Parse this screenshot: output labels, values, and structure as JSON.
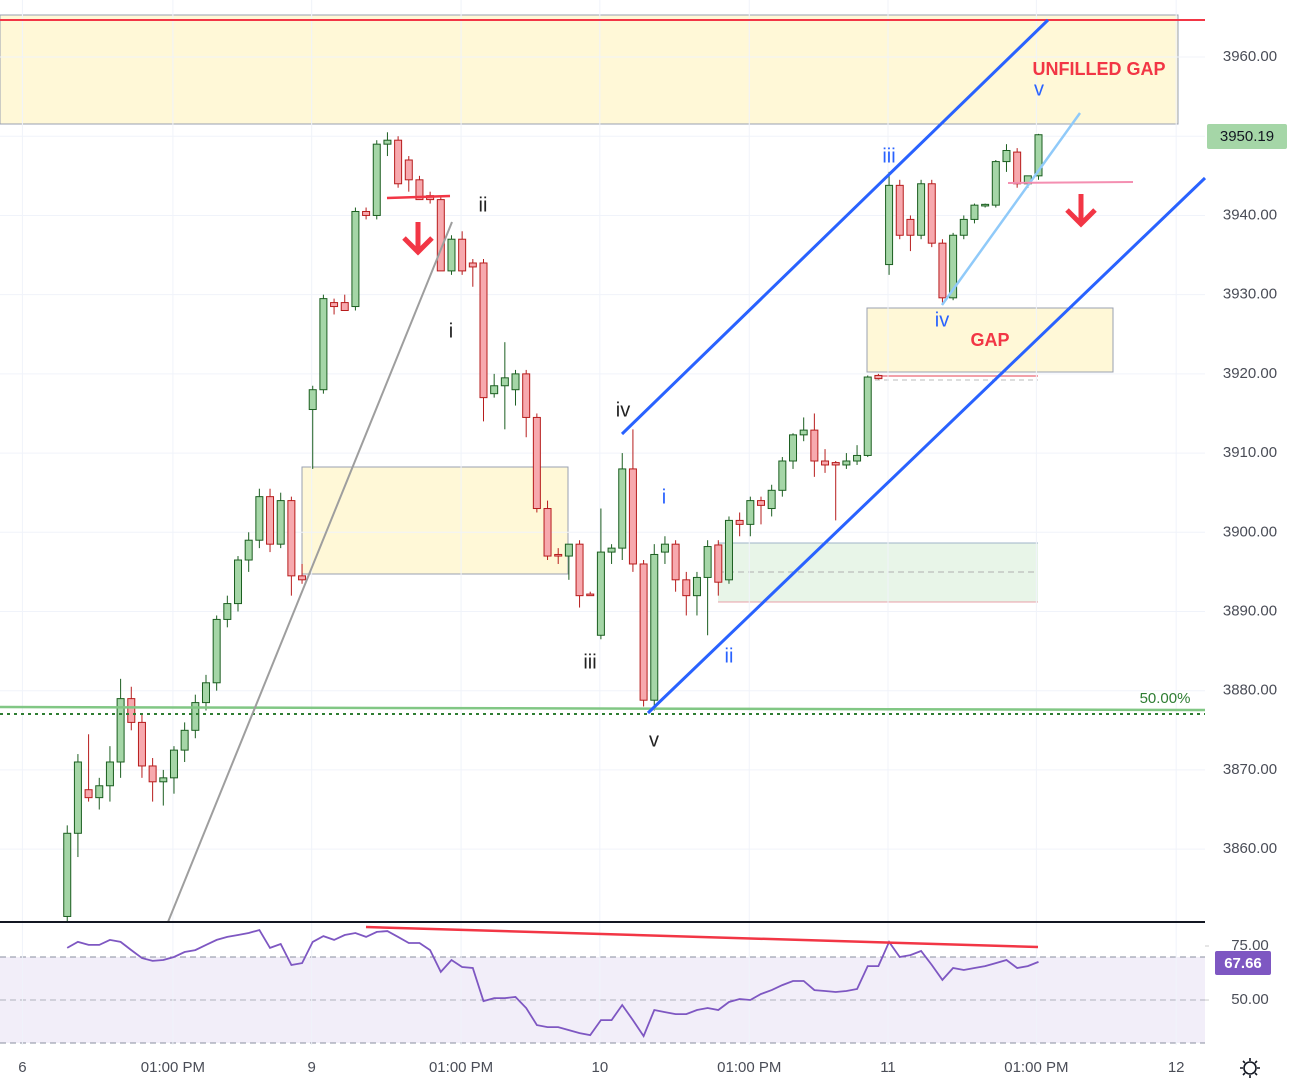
{
  "chart_data": [
    {
      "type": "candlestick",
      "x": [
        0,
        1,
        2,
        3,
        4,
        5,
        6,
        7,
        8,
        9,
        10,
        11,
        12,
        13,
        14,
        15,
        16,
        17,
        18,
        19,
        20,
        21,
        22,
        23,
        24,
        25,
        26,
        27,
        28,
        29,
        30,
        31,
        32,
        33,
        34,
        35,
        36,
        37,
        38,
        39,
        40,
        41,
        42,
        43,
        44,
        45,
        46,
        47,
        48,
        49,
        50,
        51,
        52,
        53,
        54,
        55,
        56,
        57,
        58,
        59,
        60,
        61,
        62,
        63,
        64,
        65,
        66,
        67,
        68,
        69,
        70,
        71,
        72,
        73,
        74,
        75,
        76,
        77,
        78,
        79,
        80,
        81,
        82,
        83,
        84,
        85,
        86,
        87,
        88,
        89,
        90,
        91
      ],
      "open": [
        3851.5,
        3862,
        3867.5,
        3866.5,
        3868,
        3871,
        3879,
        3876,
        3870.5,
        3868.5,
        3869,
        3872.5,
        3875,
        3878.5,
        3881,
        3889,
        3891,
        3896.5,
        3899,
        3904.5,
        3898.5,
        3904,
        3894.5,
        3915.5,
        3918,
        3929,
        3929,
        3928.5,
        3940.5,
        3940,
        3949,
        3949.5,
        3947,
        3944.5,
        3942.5,
        3942,
        3933,
        3937,
        3934,
        3934,
        3917.5,
        3918.5,
        3918,
        3920,
        3914.5,
        3903,
        3897.2,
        3897,
        3898.5,
        3892.2,
        3887,
        3897.5,
        3898,
        3908,
        3896,
        3878.8,
        3897.5,
        3898.5,
        3894,
        3892,
        3894.3,
        3898.4,
        3894,
        3901.5,
        3901,
        3904,
        3903,
        3905.3,
        3909,
        3912.3,
        3912.9,
        3909,
        3908.8,
        3908.5,
        3909,
        3909.7,
        3919.8,
        3933.8,
        3943.8,
        3939.5,
        3937.5,
        3944,
        3936.5,
        3929.6,
        3937.5,
        3939.5,
        3941.2,
        3941.3,
        3946.8,
        3948,
        3944,
        3945
      ],
      "high": [
        3863,
        3872,
        3874.5,
        3869,
        3873,
        3881.5,
        3880.5,
        3877,
        3871.5,
        3870,
        3873,
        3876,
        3879.5,
        3882,
        3889.5,
        3892,
        3897,
        3900,
        3905.5,
        3905.5,
        3905,
        3904.5,
        3896,
        3918.5,
        3930,
        3929.5,
        3930,
        3941,
        3941,
        3949.5,
        3950.5,
        3950,
        3947.5,
        3945,
        3943,
        3942.5,
        3937.5,
        3938,
        3934.5,
        3934.5,
        3920,
        3924,
        3920.5,
        3920.5,
        3915,
        3904,
        3898,
        3898.5,
        3899,
        3892.5,
        3903,
        3898.5,
        3910,
        3913,
        3896.5,
        3898.5,
        3899.5,
        3899,
        3895,
        3895,
        3899,
        3899,
        3902,
        3902.5,
        3904.5,
        3904.5,
        3906,
        3909.5,
        3912.5,
        3914.5,
        3915,
        3910.5,
        3909,
        3910,
        3911,
        3919.8,
        3920,
        3945.5,
        3944.5,
        3940,
        3944.5,
        3944.5,
        3937,
        3937.8,
        3940,
        3941.5,
        3941.5,
        3947,
        3949,
        3948.5,
        3945,
        3950.3
      ],
      "low": [
        3850.8,
        3859,
        3866,
        3865,
        3866,
        3869,
        3875,
        3869,
        3866,
        3865.5,
        3867,
        3871,
        3874,
        3877.5,
        3880,
        3888,
        3890,
        3895,
        3898,
        3897.5,
        3898,
        3892,
        3893.5,
        3908,
        3917.5,
        3927.5,
        3928,
        3928,
        3939.5,
        3939.5,
        3947.5,
        3943.5,
        3943,
        3942,
        3941.5,
        3933,
        3932.5,
        3932.5,
        3931,
        3914,
        3917,
        3913,
        3916,
        3912,
        3902.5,
        3896.5,
        3896,
        3894,
        3890.5,
        3892,
        3886.5,
        3896,
        3896.5,
        3895,
        3878,
        3877.5,
        3896,
        3892.5,
        3889.5,
        3889.5,
        3887,
        3892,
        3893.5,
        3899.5,
        3899.5,
        3901,
        3902,
        3904.5,
        3908,
        3911.5,
        3907,
        3907.5,
        3901.5,
        3908,
        3908.5,
        3909.5,
        3919.3,
        3932.5,
        3937,
        3935.5,
        3937,
        3936,
        3929,
        3929.3,
        3937,
        3939,
        3941,
        3941,
        3945.5,
        3943.5,
        3943.5,
        3944.5
      ],
      "close": [
        3862,
        3871,
        3866.5,
        3868,
        3871,
        3879,
        3876,
        3870.5,
        3868.5,
        3869,
        3872.5,
        3875,
        3878.5,
        3881,
        3889,
        3891,
        3896.5,
        3899,
        3904.5,
        3898.5,
        3904,
        3894.5,
        3894,
        3918,
        3929.5,
        3928.5,
        3928,
        3940.5,
        3940,
        3949,
        3949.5,
        3944,
        3944.5,
        3942,
        3942,
        3933,
        3937,
        3933,
        3933.5,
        3917,
        3918.5,
        3919.5,
        3920,
        3914.5,
        3903,
        3897,
        3897,
        3898.5,
        3892,
        3892,
        3897.5,
        3898,
        3908,
        3896,
        3878.8,
        3897.2,
        3898.5,
        3894,
        3892,
        3894.3,
        3898.2,
        3893.7,
        3901.5,
        3901,
        3904,
        3903.4,
        3905.3,
        3909,
        3912.3,
        3912.9,
        3909,
        3908.5,
        3908.5,
        3909,
        3909.7,
        3919.6,
        3919.4,
        3943.8,
        3937.5,
        3937.5,
        3944,
        3936.5,
        3929.6,
        3937.5,
        3939.5,
        3941.3,
        3941.4,
        3946.8,
        3948.2,
        3944,
        3945,
        3950.19
      ],
      "colors": {
        "up": "#a5d6a7",
        "up_border": "#1b5e20",
        "down": "#f7a9ae",
        "down_border": "#b71c1c"
      },
      "xlim": [
        -6.3,
        106.6
      ],
      "ylim": [
        3850.8,
        3967.2
      ],
      "xticks": [
        {
          "value": -4.2,
          "label": "6"
        },
        {
          "value": 9.9,
          "label": "01:00 PM"
        },
        {
          "value": 22.9,
          "label": "9"
        },
        {
          "value": 36.9,
          "label": "01:00 PM"
        },
        {
          "value": 49.9,
          "label": "10"
        },
        {
          "value": 63.9,
          "label": "01:00 PM"
        },
        {
          "value": 76.9,
          "label": "11"
        },
        {
          "value": 90.8,
          "label": "01:00 PM"
        },
        {
          "value": 103.9,
          "label": "12"
        }
      ],
      "yticks": [
        {
          "value": 3860,
          "label": "3860.00"
        },
        {
          "value": 3870,
          "label": "3870.00"
        },
        {
          "value": 3880,
          "label": "3880.00"
        },
        {
          "value": 3890,
          "label": "3890.00"
        },
        {
          "value": 3900,
          "label": "3900.00"
        },
        {
          "value": 3910,
          "label": "3910.00"
        },
        {
          "value": 3920,
          "label": "3920.00"
        },
        {
          "value": 3930,
          "label": "3930.00"
        },
        {
          "value": 3940,
          "label": "3940.00"
        },
        {
          "value": 3950,
          "label": "3950.00"
        },
        {
          "value": 3960,
          "label": "3960.00"
        }
      ],
      "grid": true
    },
    {
      "type": "line",
      "x": [
        0,
        1,
        2,
        3,
        4,
        5,
        6,
        7,
        8,
        9,
        10,
        11,
        12,
        13,
        14,
        15,
        16,
        17,
        18,
        19,
        20,
        21,
        22,
        23,
        24,
        25,
        26,
        27,
        28,
        29,
        30,
        31,
        32,
        33,
        34,
        35,
        36,
        37,
        38,
        39,
        40,
        41,
        42,
        43,
        44,
        45,
        46,
        47,
        48,
        49,
        50,
        51,
        52,
        53,
        54,
        55,
        56,
        57,
        58,
        59,
        60,
        61,
        62,
        63,
        64,
        65,
        66,
        67,
        68,
        69,
        70,
        71,
        72,
        73,
        74,
        75,
        76,
        77,
        78,
        79,
        80,
        81,
        82,
        83,
        84,
        85,
        86,
        87,
        88,
        89,
        90,
        91
      ],
      "values": [
        74.1,
        76.9,
        75.5,
        75.5,
        77.8,
        76.9,
        73.1,
        69.4,
        68.1,
        68.5,
        69.9,
        72.2,
        73.1,
        75.5,
        77.8,
        79.2,
        80.1,
        81.0,
        82.4,
        74.1,
        75.9,
        66.2,
        67.1,
        76.9,
        79.6,
        77.8,
        80.1,
        81.0,
        79.2,
        81.5,
        81.9,
        79.2,
        76.4,
        76.4,
        73.1,
        63.0,
        68.5,
        65.3,
        64.8,
        49.5,
        50.9,
        50.9,
        51.4,
        46.3,
        38.4,
        37.5,
        37.5,
        36.1,
        34.7,
        33.8,
        40.7,
        40.7,
        47.7,
        40.7,
        33.3,
        45.4,
        44.4,
        43.5,
        43.5,
        45.4,
        46.3,
        45.4,
        49.1,
        50.5,
        50.0,
        52.8,
        54.6,
        56.9,
        58.8,
        58.8,
        54.6,
        54.2,
        53.7,
        54.2,
        55.1,
        65.7,
        65.7,
        76.9,
        69.9,
        70.8,
        72.7,
        66.2,
        59.3,
        64.8,
        63.9,
        64.8,
        65.7,
        67.1,
        68.5,
        64.8,
        65.7,
        67.66
      ],
      "color": "#7e57c2",
      "ylim": [
        29.2,
        86.1
      ],
      "yticks": [
        {
          "value": 75,
          "label": "75.00"
        },
        {
          "value": 50,
          "label": "50.00"
        }
      ]
    }
  ],
  "annotations": [
    "ii",
    "i",
    "iii",
    "iv",
    "v",
    "i",
    "ii",
    "iii",
    "iv",
    "v",
    "UNFILLED GAP",
    "GAP",
    "50.00%"
  ]
}
